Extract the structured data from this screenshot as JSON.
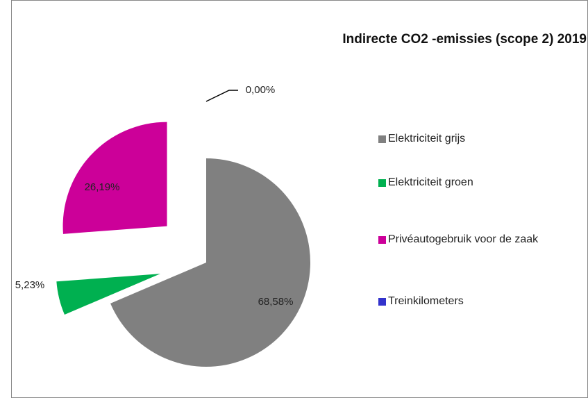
{
  "chart_data": {
    "type": "pie",
    "title": "Indirecte CO2 -emissies (scope 2) 2019",
    "categories": [
      "Elektriciteit grijs",
      "Elektriciteit groen",
      "Privéautogebruik voor de zaak",
      "Treinkilometers"
    ],
    "values": [
      68.58,
      5.23,
      26.19,
      0.0
    ],
    "value_labels": [
      "68,58%",
      "5,23%",
      "26,19%",
      "0,00%"
    ],
    "colors": [
      "#808080",
      "#00b050",
      "#cc0099",
      "#3333cc"
    ],
    "legend": "right"
  }
}
